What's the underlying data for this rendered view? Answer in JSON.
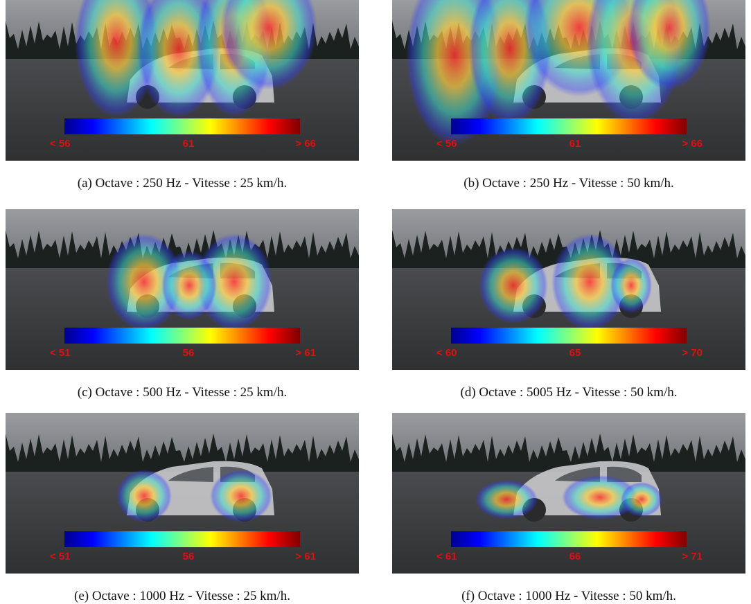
{
  "panels": [
    {
      "caption": "(a) Octave : 250 Hz - Vitesse : 25 km/h.",
      "scale": [
        "< 56",
        "61",
        "> 66"
      ]
    },
    {
      "caption": "(b) Octave : 250 Hz - Vitesse : 50 km/h.",
      "scale": [
        "< 56",
        "61",
        "> 66"
      ]
    },
    {
      "caption": "(c) Octave : 500 Hz - Vitesse : 25 km/h.",
      "scale": [
        "< 51",
        "56",
        "> 61"
      ]
    },
    {
      "caption": "(d) Octave : 5005 Hz - Vitesse : 50 km/h.",
      "scale": [
        "< 60",
        "65",
        "> 70"
      ]
    },
    {
      "caption": "(e) Octave : 1000 Hz - Vitesse : 25 km/h.",
      "scale": [
        "< 51",
        "56",
        "> 61"
      ]
    },
    {
      "caption": "(f) Octave : 1000 Hz - Vitesse : 50 km/h.",
      "scale": [
        "< 61",
        "66",
        "> 71"
      ]
    }
  ]
}
